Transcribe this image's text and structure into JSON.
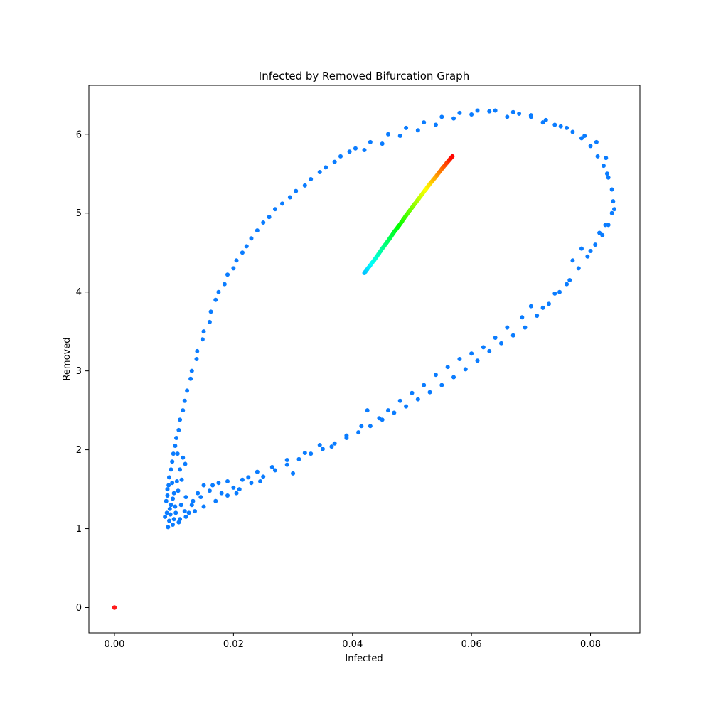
{
  "chart_data": {
    "type": "scatter",
    "title": "Infected by Removed Bifurcation Graph",
    "xlabel": "Infected",
    "ylabel": "Removed",
    "xlim": [
      -0.0043,
      0.0883
    ],
    "ylim": [
      -0.32,
      6.62
    ],
    "xticks": [
      0.0,
      0.02,
      0.04,
      0.06,
      0.08
    ],
    "xtick_labels": [
      "0.00",
      "0.02",
      "0.04",
      "0.06",
      "0.08"
    ],
    "yticks": [
      0,
      1,
      2,
      3,
      4,
      5,
      6
    ],
    "ytick_labels": [
      "0",
      "1",
      "2",
      "3",
      "4",
      "5",
      "6"
    ],
    "grid": false,
    "colormap": "hsv-like (red -> yellow -> green -> cyan -> blue)",
    "series": [
      {
        "color": "#0a7cff",
        "points": [
          [
            0.009,
            1.02
          ],
          [
            0.0092,
            1.1
          ],
          [
            0.0088,
            1.2
          ],
          [
            0.0087,
            1.35
          ],
          [
            0.0089,
            1.5
          ],
          [
            0.0092,
            1.65
          ],
          [
            0.0097,
            1.85
          ],
          [
            0.0102,
            2.05
          ],
          [
            0.0108,
            2.25
          ],
          [
            0.0115,
            2.5
          ],
          [
            0.0122,
            2.75
          ],
          [
            0.013,
            3.0
          ],
          [
            0.0139,
            3.25
          ],
          [
            0.015,
            3.5
          ],
          [
            0.0162,
            3.75
          ],
          [
            0.0175,
            4.0
          ],
          [
            0.019,
            4.22
          ],
          [
            0.0205,
            4.4
          ],
          [
            0.0222,
            4.58
          ],
          [
            0.024,
            4.78
          ],
          [
            0.026,
            4.95
          ],
          [
            0.0282,
            5.12
          ],
          [
            0.0305,
            5.28
          ],
          [
            0.033,
            5.43
          ],
          [
            0.0355,
            5.58
          ],
          [
            0.038,
            5.72
          ],
          [
            0.0405,
            5.82
          ],
          [
            0.043,
            5.9
          ],
          [
            0.046,
            6.0
          ],
          [
            0.049,
            6.08
          ],
          [
            0.052,
            6.15
          ],
          [
            0.055,
            6.22
          ],
          [
            0.058,
            6.27
          ],
          [
            0.061,
            6.3
          ],
          [
            0.064,
            6.3
          ],
          [
            0.067,
            6.28
          ],
          [
            0.07,
            6.24
          ],
          [
            0.0725,
            6.18
          ],
          [
            0.075,
            6.1
          ],
          [
            0.077,
            6.03
          ],
          [
            0.0785,
            5.95
          ],
          [
            0.08,
            5.85
          ],
          [
            0.0812,
            5.72
          ],
          [
            0.0822,
            5.6
          ],
          [
            0.083,
            5.45
          ],
          [
            0.0836,
            5.3
          ],
          [
            0.0838,
            5.15
          ],
          [
            0.0836,
            5.0
          ],
          [
            0.083,
            4.85
          ],
          [
            0.082,
            4.72
          ],
          [
            0.0808,
            4.6
          ],
          [
            0.0795,
            4.45
          ],
          [
            0.078,
            4.3
          ],
          [
            0.0765,
            4.15
          ],
          [
            0.0748,
            4.0
          ],
          [
            0.073,
            3.85
          ],
          [
            0.071,
            3.7
          ],
          [
            0.069,
            3.55
          ],
          [
            0.067,
            3.45
          ],
          [
            0.065,
            3.35
          ],
          [
            0.063,
            3.25
          ],
          [
            0.061,
            3.13
          ],
          [
            0.059,
            3.02
          ],
          [
            0.057,
            2.92
          ],
          [
            0.055,
            2.82
          ],
          [
            0.053,
            2.73
          ],
          [
            0.051,
            2.64
          ],
          [
            0.049,
            2.55
          ],
          [
            0.047,
            2.47
          ],
          [
            0.045,
            2.38
          ],
          [
            0.043,
            2.3
          ],
          [
            0.041,
            2.22
          ],
          [
            0.039,
            2.15
          ],
          [
            0.037,
            2.08
          ],
          [
            0.035,
            2.01
          ],
          [
            0.033,
            1.95
          ],
          [
            0.031,
            1.88
          ],
          [
            0.029,
            1.81
          ],
          [
            0.027,
            1.74
          ],
          [
            0.025,
            1.66
          ],
          [
            0.023,
            1.58
          ],
          [
            0.021,
            1.5
          ],
          [
            0.019,
            1.42
          ],
          [
            0.017,
            1.35
          ],
          [
            0.015,
            1.28
          ],
          [
            0.0135,
            1.22
          ],
          [
            0.012,
            1.15
          ],
          [
            0.0108,
            1.08
          ],
          [
            0.0098,
            1.05
          ],
          [
            0.0085,
            1.15
          ],
          [
            0.0095,
            1.3
          ],
          [
            0.01,
            1.45
          ],
          [
            0.0105,
            1.6
          ],
          [
            0.011,
            1.75
          ],
          [
            0.0115,
            1.9
          ],
          [
            0.012,
            1.4
          ],
          [
            0.013,
            1.3
          ],
          [
            0.014,
            1.45
          ],
          [
            0.015,
            1.55
          ],
          [
            0.0165,
            1.55
          ],
          [
            0.018,
            1.45
          ],
          [
            0.02,
            1.52
          ],
          [
            0.0215,
            1.62
          ],
          [
            0.024,
            1.72
          ],
          [
            0.0265,
            1.78
          ],
          [
            0.029,
            1.87
          ],
          [
            0.03,
            1.7
          ],
          [
            0.032,
            1.96
          ],
          [
            0.0345,
            2.06
          ],
          [
            0.0365,
            2.04
          ],
          [
            0.039,
            2.18
          ],
          [
            0.0415,
            2.3
          ],
          [
            0.0425,
            2.5
          ],
          [
            0.0445,
            2.4
          ],
          [
            0.046,
            2.5
          ],
          [
            0.048,
            2.62
          ],
          [
            0.05,
            2.72
          ],
          [
            0.052,
            2.82
          ],
          [
            0.054,
            2.95
          ],
          [
            0.056,
            3.05
          ],
          [
            0.058,
            3.15
          ],
          [
            0.06,
            3.22
          ],
          [
            0.062,
            3.3
          ],
          [
            0.064,
            3.42
          ],
          [
            0.066,
            3.55
          ],
          [
            0.0685,
            3.68
          ],
          [
            0.07,
            3.82
          ],
          [
            0.072,
            3.8
          ],
          [
            0.074,
            3.98
          ],
          [
            0.076,
            4.1
          ],
          [
            0.077,
            4.4
          ],
          [
            0.0785,
            4.55
          ],
          [
            0.08,
            4.52
          ],
          [
            0.0815,
            4.75
          ],
          [
            0.0825,
            4.85
          ],
          [
            0.0828,
            5.5
          ],
          [
            0.084,
            5.05
          ],
          [
            0.0826,
            5.7
          ],
          [
            0.081,
            5.9
          ],
          [
            0.079,
            5.98
          ],
          [
            0.076,
            6.08
          ],
          [
            0.074,
            6.12
          ],
          [
            0.072,
            6.15
          ],
          [
            0.07,
            6.22
          ],
          [
            0.068,
            6.26
          ],
          [
            0.066,
            6.22
          ],
          [
            0.063,
            6.29
          ],
          [
            0.06,
            6.25
          ],
          [
            0.057,
            6.2
          ],
          [
            0.054,
            6.12
          ],
          [
            0.051,
            6.05
          ],
          [
            0.048,
            5.98
          ],
          [
            0.045,
            5.88
          ],
          [
            0.042,
            5.8
          ],
          [
            0.0395,
            5.78
          ],
          [
            0.037,
            5.65
          ],
          [
            0.0345,
            5.52
          ],
          [
            0.032,
            5.35
          ],
          [
            0.0295,
            5.2
          ],
          [
            0.027,
            5.05
          ],
          [
            0.025,
            4.88
          ],
          [
            0.023,
            4.68
          ],
          [
            0.0215,
            4.5
          ],
          [
            0.02,
            4.3
          ],
          [
            0.0185,
            4.1
          ],
          [
            0.017,
            3.9
          ],
          [
            0.016,
            3.62
          ],
          [
            0.0148,
            3.4
          ],
          [
            0.0138,
            3.15
          ],
          [
            0.0128,
            2.9
          ],
          [
            0.0118,
            2.62
          ],
          [
            0.011,
            2.38
          ],
          [
            0.0104,
            2.15
          ],
          [
            0.0099,
            1.95
          ],
          [
            0.0095,
            1.75
          ],
          [
            0.0091,
            1.55
          ],
          [
            0.0093,
            1.25
          ],
          [
            0.01,
            1.12
          ],
          [
            0.011,
            1.12
          ],
          [
            0.0125,
            1.2
          ],
          [
            0.0112,
            1.3
          ],
          [
            0.0118,
            1.22
          ],
          [
            0.0132,
            1.35
          ],
          [
            0.0145,
            1.4
          ],
          [
            0.016,
            1.48
          ],
          [
            0.0175,
            1.58
          ],
          [
            0.019,
            1.6
          ],
          [
            0.0205,
            1.45
          ],
          [
            0.0225,
            1.65
          ],
          [
            0.0245,
            1.6
          ],
          [
            0.0098,
            1.38
          ],
          [
            0.0102,
            1.28
          ],
          [
            0.0107,
            1.48
          ],
          [
            0.0113,
            1.62
          ],
          [
            0.0119,
            1.82
          ],
          [
            0.0106,
            1.95
          ],
          [
            0.0097,
            1.58
          ],
          [
            0.0089,
            1.42
          ],
          [
            0.0094,
            1.18
          ],
          [
            0.0103,
            1.2
          ]
        ]
      },
      {
        "color": "gradient",
        "points": [
          [
            0.042,
            4.24
          ],
          [
            0.043,
            4.34
          ],
          [
            0.044,
            4.44
          ],
          [
            0.045,
            4.55
          ],
          [
            0.046,
            4.65
          ],
          [
            0.047,
            4.76
          ],
          [
            0.048,
            4.86
          ],
          [
            0.049,
            4.97
          ],
          [
            0.05,
            5.07
          ],
          [
            0.051,
            5.17
          ],
          [
            0.052,
            5.27
          ],
          [
            0.053,
            5.37
          ],
          [
            0.054,
            5.46
          ],
          [
            0.055,
            5.56
          ],
          [
            0.056,
            5.65
          ],
          [
            0.0568,
            5.72
          ]
        ]
      },
      {
        "color": "#ff1a1a",
        "points": [
          [
            0.0,
            0.0
          ]
        ]
      }
    ]
  }
}
